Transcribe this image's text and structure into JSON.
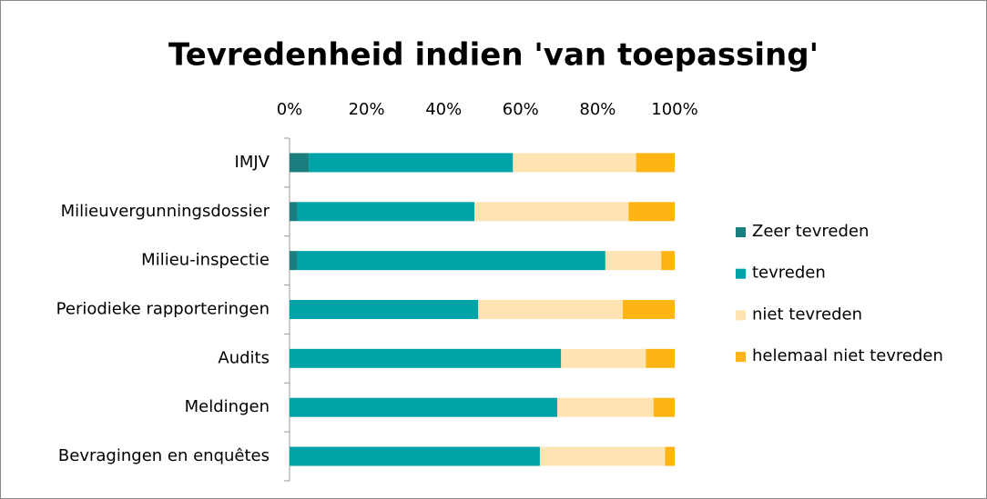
{
  "chart_data": {
    "type": "stacked-barh",
    "title": "Tevredenheid indien 'van toepassing'",
    "categories": [
      "IMJV",
      "Milieuvergunningsdossier",
      "Milieu-inspectie",
      "Periodieke rapporteringen",
      "Audits",
      "Meldingen",
      "Bevragingen en enquêtes"
    ],
    "series": [
      {
        "name": "Zeer tevreden",
        "color": "#1b7f80",
        "values": [
          5,
          2,
          2,
          0,
          0,
          0,
          0
        ]
      },
      {
        "name": "tevreden",
        "color": "#00a3a8",
        "values": [
          53,
          46,
          80,
          49,
          70.5,
          69.5,
          65
        ]
      },
      {
        "name": "niet tevreden",
        "color": "#fde4b2",
        "values": [
          32,
          40,
          14.5,
          37.5,
          22,
          25,
          32.5
        ]
      },
      {
        "name": "helemaal niet tevreden",
        "color": "#fdb515",
        "values": [
          10,
          12,
          3.5,
          13.5,
          7.5,
          5.5,
          2.5
        ]
      }
    ],
    "xlim": [
      0,
      100
    ],
    "xticks": [
      {
        "value": 0,
        "label": "0%"
      },
      {
        "value": 20,
        "label": "20%"
      },
      {
        "value": 40,
        "label": "40%"
      },
      {
        "value": 60,
        "label": "60%"
      },
      {
        "value": 80,
        "label": "80%"
      },
      {
        "value": 100,
        "label": "100%"
      }
    ],
    "legend": "right"
  }
}
